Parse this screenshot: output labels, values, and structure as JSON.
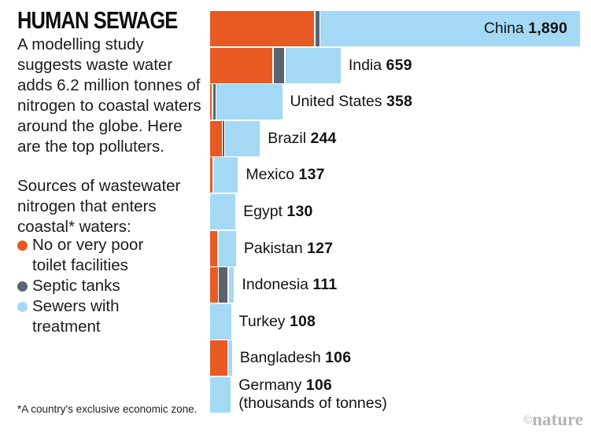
{
  "header": {
    "title": "HUMAN SEWAGE",
    "description": "A modelling study suggests waste water adds 6.2 million tonnes of nitrogen to coastal waters around the globe. Here are the top polluters."
  },
  "legend": {
    "heading": "Sources of wastewater nitrogen that enters coastal* waters:",
    "items": [
      {
        "key": "no_toilet",
        "label": "No or very poor toilet facilities",
        "color": "#e85a23"
      },
      {
        "key": "septic",
        "label": "Septic tanks",
        "color": "#5b6370"
      },
      {
        "key": "sewer",
        "label": "Sewers with treatment",
        "color": "#a3d9f4"
      }
    ]
  },
  "footnote": "*A country's exclusive economic zone.",
  "credit": {
    "symbol": "©",
    "name": "nature"
  },
  "chart_data": {
    "type": "bar",
    "orientation": "horizontal",
    "stacked": true,
    "title": "HUMAN SEWAGE",
    "unit": "thousands of tonnes",
    "unit_note": "(thousands of tonnes)",
    "xlim": [
      0,
      1890
    ],
    "grid": false,
    "legend_position": "left",
    "categories": [
      "China",
      "India",
      "United States",
      "Brazil",
      "Mexico",
      "Egypt",
      "Pakistan",
      "Indonesia",
      "Turkey",
      "Bangladesh",
      "Germany"
    ],
    "totals": [
      1890,
      659,
      358,
      244,
      137,
      130,
      127,
      111,
      108,
      106,
      106
    ],
    "total_labels": [
      "1,890",
      "659",
      "358",
      "244",
      "137",
      "130",
      "127",
      "111",
      "108",
      "106",
      "106"
    ],
    "series": [
      {
        "name": "No or very poor toilet facilities",
        "key": "no_toilet",
        "color": "#e85a23",
        "values": [
          535,
          320,
          8,
          60,
          12,
          0,
          38,
          40,
          0,
          88,
          0
        ]
      },
      {
        "name": "Septic tanks",
        "key": "septic",
        "color": "#5b6370",
        "values": [
          20,
          55,
          12,
          6,
          0,
          0,
          0,
          45,
          0,
          0,
          0
        ]
      },
      {
        "name": "Sewers with treatment",
        "key": "sewer",
        "color": "#a3d9f4",
        "values": [
          1335,
          284,
          338,
          178,
          125,
          130,
          89,
          26,
          108,
          18,
          106
        ]
      }
    ]
  }
}
